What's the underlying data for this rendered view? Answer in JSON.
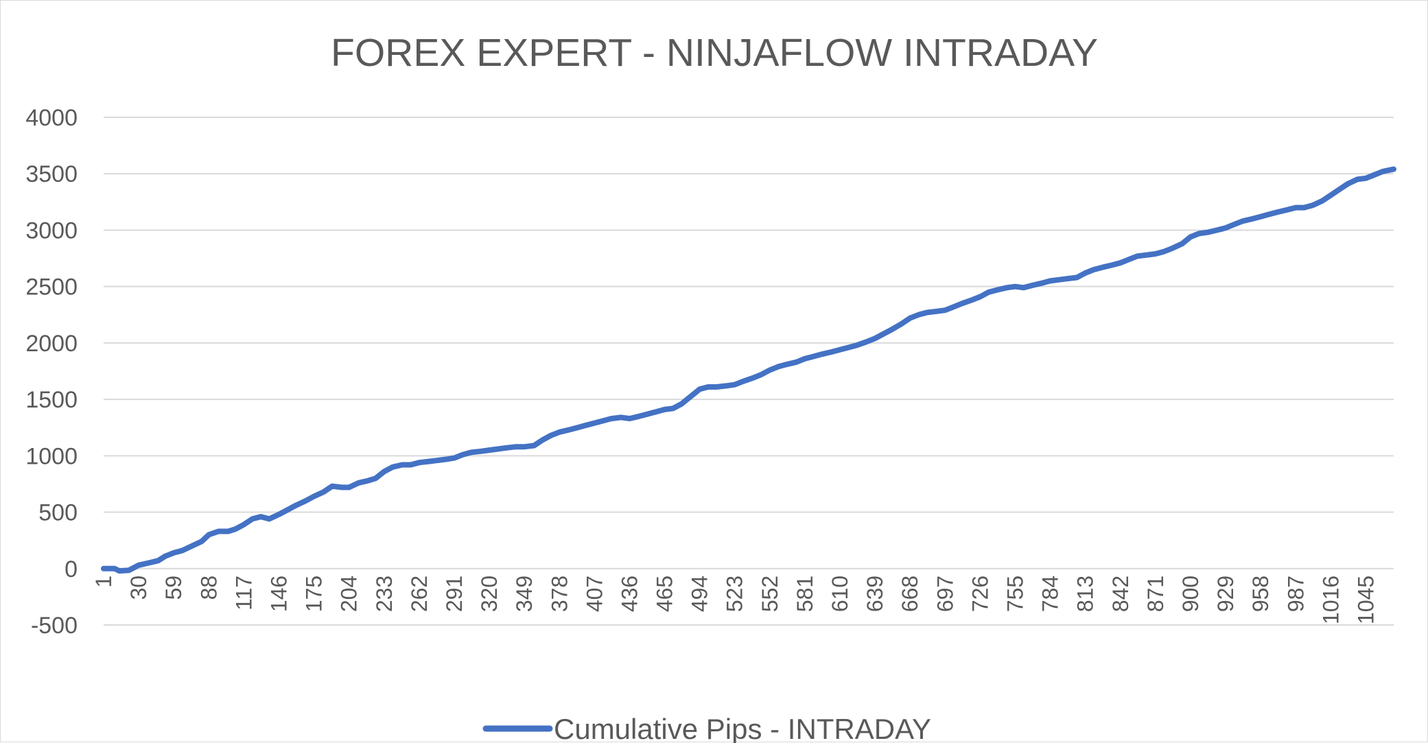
{
  "chart_data": {
    "type": "line",
    "title": "FOREX EXPERT - NINJAFLOW INTRADAY",
    "xlabel": "",
    "ylabel": "",
    "ylim": [
      -500,
      4000
    ],
    "yticks": [
      -500,
      0,
      500,
      1000,
      1500,
      2000,
      2500,
      3000,
      3500,
      4000
    ],
    "x_range": [
      1,
      1068
    ],
    "x_tick_labels": [
      "1",
      "30",
      "59",
      "88",
      "117",
      "146",
      "175",
      "204",
      "233",
      "262",
      "291",
      "320",
      "349",
      "378",
      "407",
      "436",
      "465",
      "494",
      "523",
      "552",
      "581",
      "610",
      "639",
      "668",
      "697",
      "726",
      "755",
      "784",
      "813",
      "842",
      "871",
      "900",
      "929",
      "958",
      "987",
      "1016",
      "1045"
    ],
    "grid": true,
    "legend_position": "bottom",
    "series": [
      {
        "name": "Cumulative Pips - INTRADAY",
        "color": "#4472C4",
        "x": [
          1,
          10,
          14,
          22,
          30,
          38,
          46,
          52,
          59,
          66,
          74,
          82,
          88,
          96,
          104,
          110,
          117,
          124,
          131,
          138,
          146,
          153,
          160,
          168,
          175,
          183,
          190,
          198,
          204,
          212,
          220,
          226,
          233,
          240,
          248,
          255,
          262,
          270,
          278,
          285,
          291,
          298,
          305,
          313,
          320,
          327,
          334,
          342,
          349,
          357,
          364,
          371,
          378,
          386,
          393,
          400,
          407,
          414,
          421,
          429,
          436,
          444,
          451,
          458,
          465,
          472,
          479,
          486,
          494,
          501,
          508,
          516,
          523,
          530,
          538,
          545,
          552,
          559,
          566,
          574,
          581,
          588,
          595,
          603,
          610,
          617,
          624,
          632,
          639,
          646,
          653,
          661,
          668,
          675,
          682,
          690,
          697,
          704,
          711,
          719,
          726,
          733,
          740,
          748,
          755,
          762,
          769,
          777,
          784,
          791,
          798,
          806,
          813,
          820,
          827,
          835,
          842,
          849,
          856,
          864,
          871,
          878,
          885,
          893,
          900,
          907,
          914,
          922,
          929,
          936,
          943,
          951,
          958,
          965,
          972,
          980,
          987,
          994,
          1001,
          1009,
          1016,
          1023,
          1030,
          1038,
          1045,
          1052,
          1059,
          1068
        ],
        "y": [
          0,
          0,
          -20,
          -15,
          30,
          50,
          70,
          110,
          140,
          160,
          200,
          240,
          300,
          330,
          330,
          350,
          390,
          440,
          460,
          440,
          480,
          520,
          560,
          600,
          640,
          680,
          730,
          720,
          720,
          760,
          780,
          800,
          860,
          900,
          920,
          920,
          940,
          950,
          960,
          970,
          980,
          1010,
          1030,
          1040,
          1050,
          1060,
          1070,
          1080,
          1080,
          1090,
          1140,
          1180,
          1210,
          1230,
          1250,
          1270,
          1290,
          1310,
          1330,
          1340,
          1330,
          1350,
          1370,
          1390,
          1410,
          1420,
          1460,
          1520,
          1590,
          1610,
          1610,
          1620,
          1630,
          1660,
          1690,
          1720,
          1760,
          1790,
          1810,
          1830,
          1860,
          1880,
          1900,
          1920,
          1940,
          1960,
          1980,
          2010,
          2040,
          2080,
          2120,
          2170,
          2220,
          2250,
          2270,
          2280,
          2290,
          2320,
          2350,
          2380,
          2410,
          2450,
          2470,
          2490,
          2500,
          2490,
          2510,
          2530,
          2550,
          2560,
          2570,
          2580,
          2620,
          2650,
          2670,
          2690,
          2710,
          2740,
          2770,
          2780,
          2790,
          2810,
          2840,
          2880,
          2940,
          2970,
          2980,
          3000,
          3020,
          3050,
          3080,
          3100,
          3120,
          3140,
          3160,
          3180,
          3200,
          3200,
          3220,
          3260,
          3310,
          3360,
          3410,
          3450,
          3460,
          3490,
          3520,
          3540
        ]
      }
    ]
  }
}
